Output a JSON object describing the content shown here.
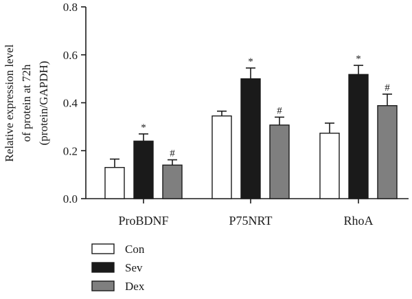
{
  "chart_data": {
    "type": "bar",
    "ylabel_lines": [
      "Relative expression level",
      "of protein at 72h",
      "(protein/GAPDH)"
    ],
    "ylim": [
      0,
      0.8
    ],
    "yticks": [
      0.0,
      0.2,
      0.4,
      0.6,
      0.8
    ],
    "ytick_labels": [
      "0.0",
      "0.2",
      "0.4",
      "0.6",
      "0.8"
    ],
    "categories": [
      "ProBDNF",
      "P75NRT",
      "RhoA"
    ],
    "series": [
      {
        "name": "Con",
        "color": "#ffffff",
        "values": [
          0.13,
          0.345,
          0.273
        ],
        "errors": [
          0.035,
          0.02,
          0.042
        ],
        "markers": [
          "",
          "",
          ""
        ]
      },
      {
        "name": "Sev",
        "color": "#1a1a1a",
        "values": [
          0.24,
          0.5,
          0.518
        ],
        "errors": [
          0.03,
          0.045,
          0.038
        ],
        "markers": [
          "*",
          "*",
          "*"
        ]
      },
      {
        "name": "Dex",
        "color": "#7f7f7f",
        "values": [
          0.14,
          0.307,
          0.388
        ],
        "errors": [
          0.022,
          0.033,
          0.048
        ],
        "markers": [
          "#",
          "#",
          "#"
        ]
      }
    ],
    "grid": false,
    "legend_position": "bottom-left"
  }
}
